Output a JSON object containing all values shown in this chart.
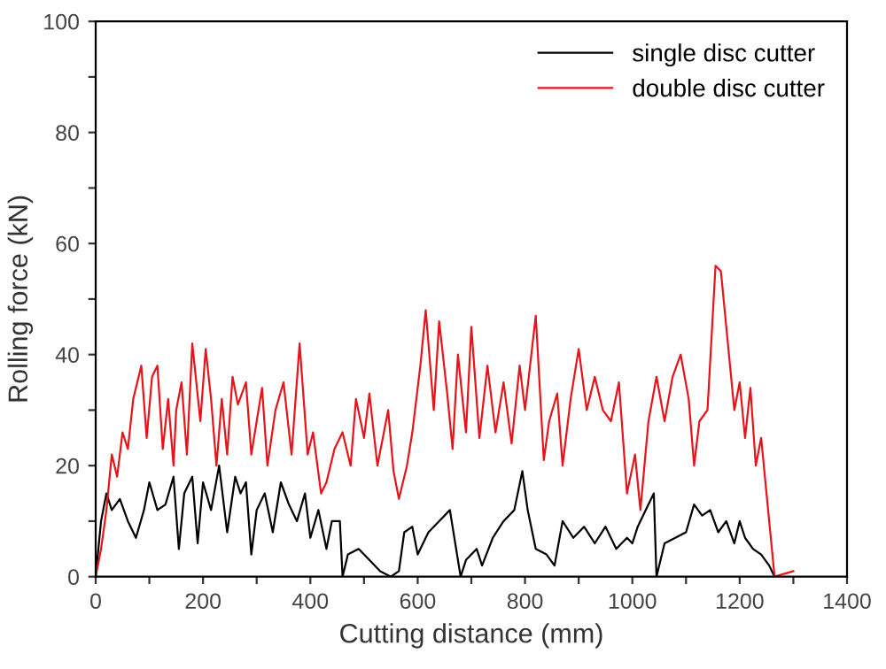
{
  "chart_data": {
    "type": "line",
    "xlabel": "Cutting distance (mm)",
    "ylabel": "Rolling force (kN)",
    "xlim": [
      0,
      1400
    ],
    "ylim": [
      0,
      100
    ],
    "xticks": [
      0,
      {
        "value": 100,
        "label": null
      },
      200,
      {
        "value": 300,
        "label": null
      },
      400,
      {
        "value": 500,
        "label": null
      },
      600,
      {
        "value": 700,
        "label": null
      },
      800,
      {
        "value": 900,
        "label": null
      },
      1000,
      {
        "value": 1100,
        "label": null
      },
      1200,
      {
        "value": 1300,
        "label": null
      },
      1400
    ],
    "yticks": [
      0,
      {
        "value": 10,
        "label": null
      },
      20,
      {
        "value": 30,
        "label": null
      },
      40,
      {
        "value": 50,
        "label": null
      },
      60,
      {
        "value": 70,
        "label": null
      },
      80,
      {
        "value": 90,
        "label": null
      },
      100
    ],
    "legend": "top right",
    "grid": false,
    "series": [
      {
        "name": "single disc cutter",
        "color": "#000000",
        "x": [
          0,
          10,
          20,
          30,
          45,
          60,
          75,
          90,
          100,
          115,
          130,
          145,
          155,
          165,
          180,
          190,
          200,
          215,
          230,
          245,
          260,
          270,
          280,
          290,
          300,
          315,
          330,
          345,
          360,
          375,
          390,
          400,
          415,
          430,
          440,
          455,
          460,
          470,
          490,
          510,
          530,
          550,
          565,
          575,
          590,
          600,
          620,
          640,
          660,
          670,
          680,
          690,
          710,
          720,
          740,
          760,
          780,
          795,
          805,
          820,
          840,
          855,
          870,
          890,
          910,
          930,
          950,
          970,
          990,
          1000,
          1010,
          1030,
          1040,
          1045,
          1060,
          1080,
          1100,
          1115,
          1130,
          1145,
          1160,
          1175,
          1190,
          1200,
          1210,
          1225,
          1240,
          1255,
          1265
        ],
        "values": [
          0,
          10,
          15,
          12,
          14,
          10,
          7,
          12,
          17,
          12,
          13,
          18,
          5,
          15,
          18,
          6,
          17,
          12,
          20,
          8,
          18,
          15,
          17,
          4,
          12,
          15,
          8,
          17,
          13,
          10,
          15,
          7,
          12,
          5,
          10,
          10,
          0,
          4,
          5,
          3,
          1,
          0,
          1,
          8,
          9,
          4,
          8,
          10,
          12,
          6,
          0,
          3,
          5,
          2,
          7,
          10,
          12,
          19,
          12,
          5,
          4,
          2,
          10,
          7,
          9,
          6,
          9,
          5,
          7,
          6,
          9,
          13,
          15,
          0,
          6,
          7,
          8,
          13,
          11,
          12,
          8,
          10,
          6,
          10,
          7,
          5,
          4,
          2,
          0
        ]
      },
      {
        "name": "double disc cutter",
        "color": "#e8141c",
        "x": [
          0,
          10,
          20,
          30,
          40,
          50,
          60,
          70,
          85,
          95,
          105,
          115,
          125,
          135,
          145,
          150,
          160,
          170,
          180,
          195,
          205,
          215,
          225,
          235,
          245,
          255,
          265,
          280,
          290,
          300,
          310,
          320,
          335,
          350,
          365,
          380,
          395,
          405,
          420,
          430,
          445,
          460,
          475,
          485,
          500,
          510,
          525,
          545,
          555,
          565,
          580,
          590,
          605,
          615,
          630,
          640,
          655,
          665,
          675,
          690,
          700,
          715,
          730,
          745,
          760,
          775,
          790,
          800,
          820,
          835,
          845,
          860,
          870,
          885,
          900,
          915,
          930,
          945,
          960,
          975,
          990,
          1005,
          1015,
          1030,
          1045,
          1060,
          1075,
          1090,
          1105,
          1115,
          1125,
          1140,
          1155,
          1165,
          1180,
          1190,
          1200,
          1210,
          1220,
          1230,
          1240,
          1250,
          1265,
          1300
        ],
        "values": [
          0,
          5,
          12,
          22,
          18,
          26,
          23,
          32,
          38,
          25,
          36,
          38,
          23,
          32,
          20,
          30,
          35,
          22,
          42,
          28,
          41,
          32,
          20,
          32,
          22,
          36,
          31,
          35,
          22,
          28,
          34,
          20,
          30,
          35,
          22,
          42,
          22,
          26,
          15,
          17,
          23,
          26,
          20,
          32,
          25,
          33,
          20,
          30,
          19,
          14,
          20,
          26,
          38,
          48,
          30,
          46,
          33,
          23,
          40,
          26,
          45,
          25,
          38,
          26,
          35,
          24,
          38,
          30,
          47,
          21,
          28,
          33,
          20,
          32,
          41,
          30,
          36,
          30,
          28,
          35,
          15,
          22,
          12,
          28,
          36,
          28,
          36,
          40,
          32,
          20,
          28,
          30,
          56,
          55,
          40,
          30,
          35,
          25,
          34,
          20,
          25,
          15,
          0,
          1
        ]
      }
    ]
  }
}
